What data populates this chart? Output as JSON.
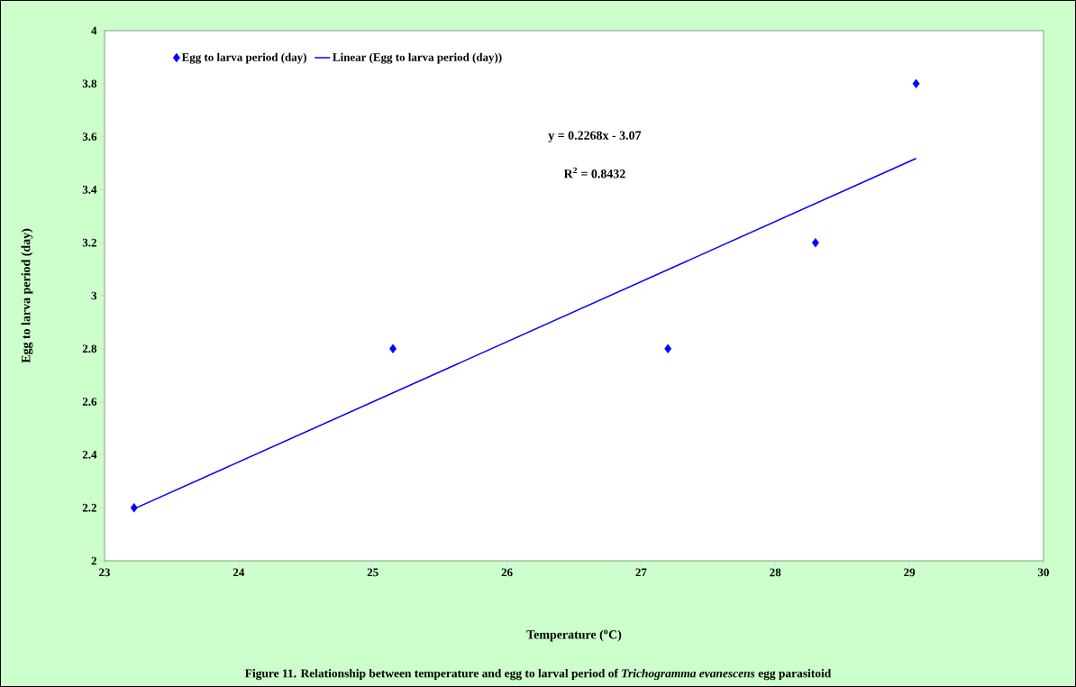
{
  "chart_data": {
    "type": "scatter",
    "title": "Figure 11. Relationship between temperature and egg to larval period of *Trichogramma evanescens*  egg parasitoid",
    "xlabel": "Temperature ($^{o}$C)",
    "ylabel": "Egg to larva period (day)",
    "annotations": [
      "y = 0.2268x - 3.07",
      "R$^{2}$ = 0.8432"
    ],
    "series": [
      {
        "name": "Egg to larva period (day)",
        "marker": "diamond",
        "color": "#0000ff",
        "x": [
          23.22,
          25.15,
          27.2,
          28.3,
          29.05
        ],
        "values": [
          2.2,
          2.8,
          2.8,
          3.2,
          3.8
        ]
      },
      {
        "name": "Linear (Egg to larva period (day))",
        "type": "line",
        "marker": "none",
        "color": "#0000ff",
        "x": [
          23.22,
          29.05
        ],
        "values": [
          2.196,
          3.518
        ]
      }
    ],
    "xlim": [
      23,
      30
    ],
    "ylim": [
      2,
      4
    ],
    "xticks": [
      23,
      24,
      25,
      26,
      27,
      28,
      29,
      30
    ],
    "yticks": [
      2,
      2.2,
      2.4,
      2.6,
      2.8,
      3,
      3.2,
      3.4,
      3.6,
      3.8,
      4
    ],
    "legend": "top left",
    "grid": false
  }
}
